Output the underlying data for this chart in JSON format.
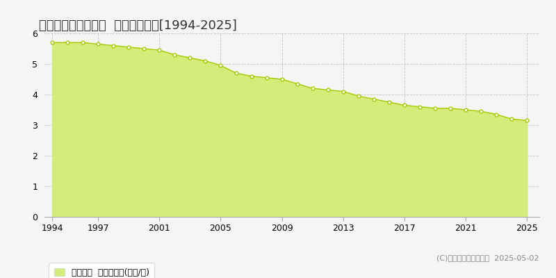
{
  "title": "東白川郡塙町上石井  公示地価推移[1994-2025]",
  "years": [
    1994,
    1995,
    1996,
    1997,
    1998,
    1999,
    2000,
    2001,
    2002,
    2003,
    2004,
    2005,
    2006,
    2007,
    2008,
    2009,
    2010,
    2011,
    2012,
    2013,
    2014,
    2015,
    2016,
    2017,
    2018,
    2019,
    2020,
    2021,
    2022,
    2023,
    2024,
    2025
  ],
  "values": [
    5.7,
    5.7,
    5.7,
    5.65,
    5.6,
    5.55,
    5.5,
    5.45,
    5.3,
    5.2,
    5.1,
    4.95,
    4.7,
    4.6,
    4.55,
    4.5,
    4.35,
    4.2,
    4.15,
    4.1,
    3.95,
    3.85,
    3.75,
    3.65,
    3.6,
    3.55,
    3.55,
    3.5,
    3.45,
    3.35,
    3.2,
    3.15
  ],
  "fill_color": "#d4ed7a",
  "line_color": "#a8c800",
  "marker_facecolor": "#ffffff",
  "marker_edgecolor": "#a8c800",
  "grid_color": "#bbbbbb",
  "background_color": "#f5f5f5",
  "plot_bg_color": "#f5f5f5",
  "ylim": [
    0,
    6
  ],
  "yticks": [
    0,
    1,
    2,
    3,
    4,
    5,
    6
  ],
  "xticks": [
    1994,
    1997,
    2001,
    2005,
    2009,
    2013,
    2017,
    2021,
    2025
  ],
  "legend_label": "公示地価  平均坪単価(万円/坪)",
  "copyright": "(C)土地価格ドットコム  2025-05-02",
  "title_fontsize": 13,
  "tick_fontsize": 9,
  "legend_fontsize": 9,
  "copyright_fontsize": 8
}
